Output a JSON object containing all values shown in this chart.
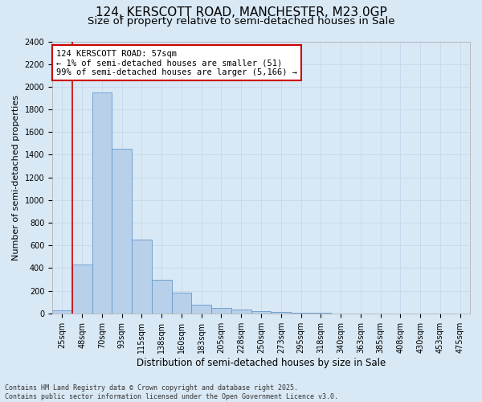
{
  "title1": "124, KERSCOTT ROAD, MANCHESTER, M23 0GP",
  "title2": "Size of property relative to semi-detached houses in Sale",
  "xlabel": "Distribution of semi-detached houses by size in Sale",
  "ylabel": "Number of semi-detached properties",
  "categories": [
    "25sqm",
    "48sqm",
    "70sqm",
    "93sqm",
    "115sqm",
    "138sqm",
    "160sqm",
    "183sqm",
    "205sqm",
    "228sqm",
    "250sqm",
    "273sqm",
    "295sqm",
    "318sqm",
    "340sqm",
    "363sqm",
    "385sqm",
    "408sqm",
    "430sqm",
    "453sqm",
    "475sqm"
  ],
  "values": [
    30,
    430,
    1950,
    1450,
    650,
    300,
    185,
    75,
    50,
    35,
    20,
    10,
    5,
    3,
    2,
    1,
    0,
    0,
    0,
    0,
    0
  ],
  "bar_color": "#b8d0ea",
  "bar_edge_color": "#6699cc",
  "vline_color": "#cc0000",
  "vline_x_index": 1,
  "annotation_text": "124 KERSCOTT ROAD: 57sqm\n← 1% of semi-detached houses are smaller (51)\n99% of semi-detached houses are larger (5,166) →",
  "annotation_box_facecolor": "#ffffff",
  "annotation_box_edgecolor": "#cc0000",
  "ylim": [
    0,
    2400
  ],
  "yticks": [
    0,
    200,
    400,
    600,
    800,
    1000,
    1200,
    1400,
    1600,
    1800,
    2000,
    2200,
    2400
  ],
  "grid_color": "#c5d8ec",
  "background_color": "#d8e8f5",
  "footer_line1": "Contains HM Land Registry data © Crown copyright and database right 2025.",
  "footer_line2": "Contains public sector information licensed under the Open Government Licence v3.0.",
  "title1_fontsize": 11,
  "title2_fontsize": 9.5,
  "xlabel_fontsize": 8.5,
  "ylabel_fontsize": 8,
  "tick_fontsize": 7,
  "annotation_fontsize": 7.5,
  "footer_fontsize": 6
}
